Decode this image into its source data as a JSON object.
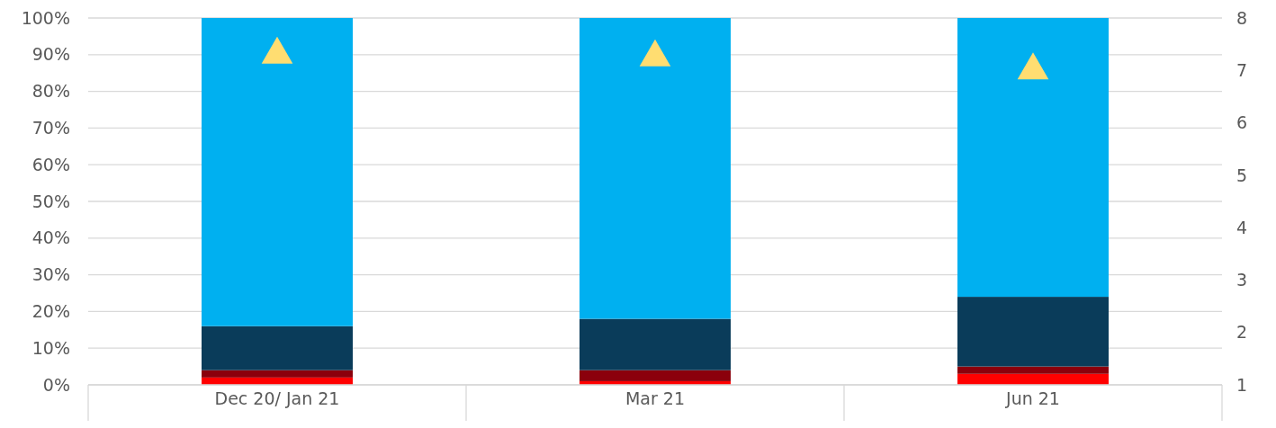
{
  "chart_data": {
    "type": "bar",
    "stacked": true,
    "categories": [
      "Dec 20/ Jan 21",
      "Mar 21",
      "Jun 21"
    ],
    "series": [
      {
        "color": "#ff0000",
        "values": [
          2,
          1,
          3
        ]
      },
      {
        "color": "#8b000c",
        "values": [
          2,
          3,
          2
        ]
      },
      {
        "color": "#0a3c5a",
        "values": [
          12,
          14,
          19
        ]
      },
      {
        "color": "#00b0f0",
        "values": [
          84,
          82,
          76
        ]
      },
      {
        "type": "scatter",
        "axis": "y2",
        "color": "#ffdd71",
        "marker": "triangle",
        "values": [
          7.3,
          7.25,
          7.0
        ]
      }
    ],
    "ylim": [
      0,
      100
    ],
    "yticks": [
      {
        "value": 0,
        "label": "0%"
      },
      {
        "value": 10,
        "label": "10%"
      },
      {
        "value": 20,
        "label": "20%"
      },
      {
        "value": 30,
        "label": "30%"
      },
      {
        "value": 40,
        "label": "40%"
      },
      {
        "value": 50,
        "label": "50%"
      },
      {
        "value": 60,
        "label": "60%"
      },
      {
        "value": 70,
        "label": "70%"
      },
      {
        "value": 80,
        "label": "80%"
      },
      {
        "value": 90,
        "label": "90%"
      },
      {
        "value": 100,
        "label": "100%"
      }
    ],
    "y2lim": [
      1,
      8
    ],
    "y2ticks": [
      1,
      2,
      3,
      4,
      5,
      6,
      7,
      8
    ],
    "grid": "y"
  }
}
